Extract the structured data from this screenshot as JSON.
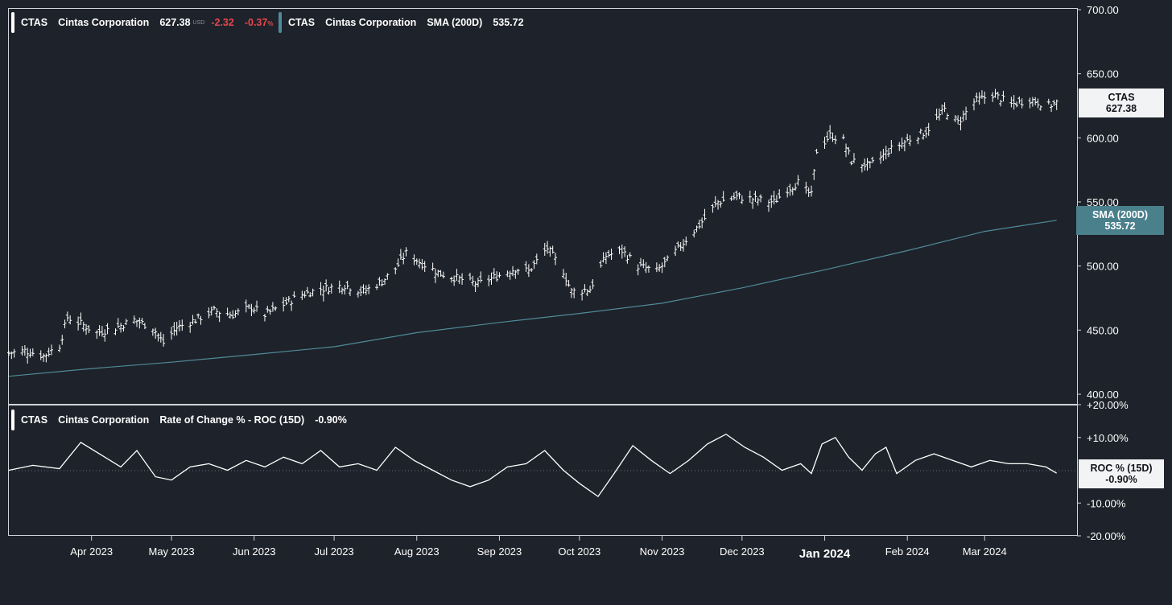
{
  "legend_main": {
    "symbol": "CTAS",
    "name": "Cintas Corporation",
    "price": "627.38",
    "currency": "USD",
    "change": "-2.32",
    "change_pct": "-0.37",
    "pct_sign": "%"
  },
  "legend_sma": {
    "symbol": "CTAS",
    "name": "Cintas Corporation",
    "indicator": "SMA (200D)",
    "value": "535.72"
  },
  "legend_roc": {
    "symbol": "CTAS",
    "name": "Cintas Corporation",
    "indicator": "Rate of Change % - ROC (15D)",
    "value": "-0.90%"
  },
  "tags": {
    "price_label": "CTAS",
    "price_value": "627.38",
    "sma_label": "SMA (200D)",
    "sma_value": "535.72",
    "roc_label": "ROC % (15D)",
    "roc_value": "-0.90%"
  },
  "colors": {
    "background": "#1e222a",
    "price": "#ffffff",
    "sma": "#4f8b99",
    "sma_tag": "#4a7f8c",
    "negative": "#e5484d",
    "axis_text": "#ffffff"
  },
  "chart_data": [
    {
      "type": "ohlc",
      "series_name": "CTAS",
      "ylim": [
        400,
        700
      ],
      "y_ticks": [
        "700.00",
        "650.00",
        "600.00",
        "550.00",
        "500.00",
        "450.00",
        "400.00"
      ],
      "x_ticks": [
        {
          "label": "Apr 2023",
          "date": "2023-04-01"
        },
        {
          "label": "May 2023",
          "date": "2023-05-01"
        },
        {
          "label": "Jun 2023",
          "date": "2023-06-01"
        },
        {
          "label": "Jul 2023",
          "date": "2023-07-01"
        },
        {
          "label": "Aug 2023",
          "date": "2023-08-01"
        },
        {
          "label": "Sep 2023",
          "date": "2023-09-01"
        },
        {
          "label": "Oct 2023",
          "date": "2023-10-01"
        },
        {
          "label": "Nov 2023",
          "date": "2023-11-01"
        },
        {
          "label": "Dec 2023",
          "date": "2023-12-01"
        },
        {
          "label": "Jan 2024",
          "date": "2024-01-01",
          "bold": true
        },
        {
          "label": "Feb 2024",
          "date": "2024-02-01"
        },
        {
          "label": "Mar 2024",
          "date": "2024-03-01"
        }
      ],
      "x_range": [
        "2023-03-01",
        "2024-03-29"
      ],
      "price_path": [
        [
          "2023-03-01",
          432
        ],
        [
          "2023-03-07",
          434
        ],
        [
          "2023-03-14",
          430
        ],
        [
          "2023-03-20",
          438
        ],
        [
          "2023-03-23",
          460
        ],
        [
          "2023-03-28",
          455
        ],
        [
          "2023-04-03",
          448
        ],
        [
          "2023-04-10",
          452
        ],
        [
          "2023-04-17",
          458
        ],
        [
          "2023-04-24",
          452
        ],
        [
          "2023-04-28",
          440
        ],
        [
          "2023-05-03",
          452
        ],
        [
          "2023-05-10",
          458
        ],
        [
          "2023-05-17",
          465
        ],
        [
          "2023-05-24",
          462
        ],
        [
          "2023-05-31",
          468
        ],
        [
          "2023-06-05",
          462
        ],
        [
          "2023-06-12",
          470
        ],
        [
          "2023-06-19",
          478
        ],
        [
          "2023-06-26",
          482
        ],
        [
          "2023-07-05",
          485
        ],
        [
          "2023-07-12",
          480
        ],
        [
          "2023-07-19",
          488
        ],
        [
          "2023-07-24",
          498
        ],
        [
          "2023-07-28",
          510
        ],
        [
          "2023-08-03",
          502
        ],
        [
          "2023-08-10",
          494
        ],
        [
          "2023-08-17",
          490
        ],
        [
          "2023-08-24",
          486
        ],
        [
          "2023-08-31",
          492
        ],
        [
          "2023-09-07",
          498
        ],
        [
          "2023-09-12",
          496
        ],
        [
          "2023-09-19",
          514
        ],
        [
          "2023-09-25",
          496
        ],
        [
          "2023-09-28",
          480
        ],
        [
          "2023-10-05",
          482
        ],
        [
          "2023-10-11",
          508
        ],
        [
          "2023-10-17",
          512
        ],
        [
          "2023-10-23",
          500
        ],
        [
          "2023-10-30",
          496
        ],
        [
          "2023-11-03",
          504
        ],
        [
          "2023-11-08",
          516
        ],
        [
          "2023-11-15",
          532
        ],
        [
          "2023-11-22",
          550
        ],
        [
          "2023-11-29",
          554
        ],
        [
          "2023-12-06",
          552
        ],
        [
          "2023-12-13",
          550
        ],
        [
          "2023-12-18",
          560
        ],
        [
          "2023-12-22",
          565
        ],
        [
          "2023-12-27",
          555
        ],
        [
          "2023-12-29",
          590
        ],
        [
          "2024-01-03",
          602
        ],
        [
          "2024-01-08",
          598
        ],
        [
          "2024-01-11",
          582
        ],
        [
          "2024-01-18",
          578
        ],
        [
          "2024-01-25",
          590
        ],
        [
          "2024-02-01",
          598
        ],
        [
          "2024-02-08",
          605
        ],
        [
          "2024-02-15",
          622
        ],
        [
          "2024-02-20",
          612
        ],
        [
          "2024-02-26",
          628
        ],
        [
          "2024-03-04",
          634
        ],
        [
          "2024-03-11",
          626
        ],
        [
          "2024-03-18",
          630
        ],
        [
          "2024-03-25",
          625
        ],
        [
          "2024-03-28",
          627.38
        ]
      ]
    },
    {
      "type": "line",
      "series_name": "SMA (200D)",
      "points": [
        [
          "2023-03-01",
          414
        ],
        [
          "2023-04-01",
          420
        ],
        [
          "2023-05-01",
          425
        ],
        [
          "2023-06-01",
          431
        ],
        [
          "2023-07-01",
          437
        ],
        [
          "2023-08-01",
          448
        ],
        [
          "2023-09-01",
          456
        ],
        [
          "2023-10-01",
          463
        ],
        [
          "2023-11-01",
          471
        ],
        [
          "2023-12-01",
          483
        ],
        [
          "2024-01-01",
          497
        ],
        [
          "2024-02-01",
          512
        ],
        [
          "2024-03-01",
          527
        ],
        [
          "2024-03-28",
          535.72
        ]
      ]
    },
    {
      "type": "line",
      "series_name": "ROC % (15D)",
      "ylim": [
        -20,
        20
      ],
      "y_ticks": [
        "+20.00%",
        "+10.00%",
        "-10.00%",
        "-20.00%"
      ],
      "points": [
        [
          "2023-03-01",
          0
        ],
        [
          "2023-03-10",
          1.5
        ],
        [
          "2023-03-20",
          0.5
        ],
        [
          "2023-03-28",
          8.5
        ],
        [
          "2023-04-05",
          4.5
        ],
        [
          "2023-04-12",
          1
        ],
        [
          "2023-04-18",
          6
        ],
        [
          "2023-04-25",
          -2
        ],
        [
          "2023-05-01",
          -3
        ],
        [
          "2023-05-08",
          1
        ],
        [
          "2023-05-15",
          2
        ],
        [
          "2023-05-22",
          0
        ],
        [
          "2023-05-29",
          3
        ],
        [
          "2023-06-05",
          1
        ],
        [
          "2023-06-12",
          4
        ],
        [
          "2023-06-19",
          2
        ],
        [
          "2023-06-26",
          6
        ],
        [
          "2023-07-03",
          1
        ],
        [
          "2023-07-10",
          2
        ],
        [
          "2023-07-17",
          0
        ],
        [
          "2023-07-24",
          7
        ],
        [
          "2023-07-31",
          3
        ],
        [
          "2023-08-07",
          0
        ],
        [
          "2023-08-14",
          -3
        ],
        [
          "2023-08-21",
          -5
        ],
        [
          "2023-08-28",
          -3
        ],
        [
          "2023-09-04",
          1
        ],
        [
          "2023-09-11",
          2
        ],
        [
          "2023-09-18",
          6
        ],
        [
          "2023-09-25",
          0
        ],
        [
          "2023-10-01",
          -4
        ],
        [
          "2023-10-08",
          -8
        ],
        [
          "2023-10-14",
          -1
        ],
        [
          "2023-10-21",
          7.5
        ],
        [
          "2023-10-28",
          3
        ],
        [
          "2023-11-04",
          -1
        ],
        [
          "2023-11-11",
          3
        ],
        [
          "2023-11-18",
          8
        ],
        [
          "2023-11-25",
          11
        ],
        [
          "2023-12-02",
          7
        ],
        [
          "2023-12-09",
          4
        ],
        [
          "2023-12-16",
          0
        ],
        [
          "2023-12-23",
          2
        ],
        [
          "2023-12-27",
          -1
        ],
        [
          "2023-12-31",
          8
        ],
        [
          "2024-01-05",
          10
        ],
        [
          "2024-01-10",
          4
        ],
        [
          "2024-01-15",
          0
        ],
        [
          "2024-01-20",
          5
        ],
        [
          "2024-01-24",
          7
        ],
        [
          "2024-01-28",
          -1
        ],
        [
          "2024-02-04",
          3
        ],
        [
          "2024-02-11",
          5
        ],
        [
          "2024-02-18",
          3
        ],
        [
          "2024-02-25",
          1
        ],
        [
          "2024-03-03",
          3
        ],
        [
          "2024-03-10",
          2
        ],
        [
          "2024-03-17",
          2
        ],
        [
          "2024-03-24",
          1
        ],
        [
          "2024-03-28",
          -0.9
        ]
      ]
    }
  ]
}
